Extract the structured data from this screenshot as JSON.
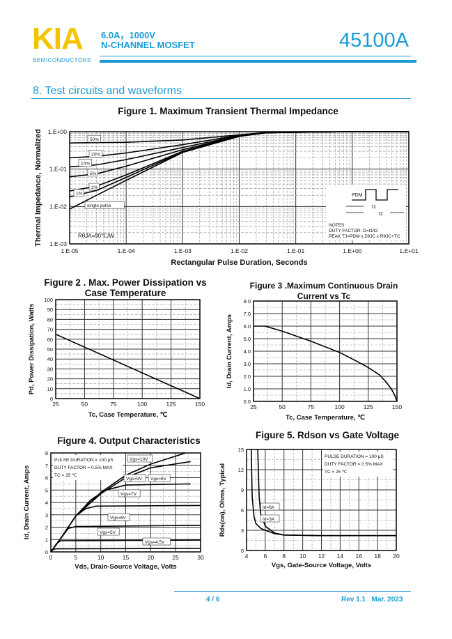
{
  "header": {
    "logo": "KIA",
    "logo_sub": "SEMICONDUCTORS",
    "spec_line1": "6.0A，1000V",
    "spec_line2": "N-CHANNEL MOSFET",
    "part_number": "45100A",
    "accent": "#1a9bd7",
    "logo_color": "#f5c400"
  },
  "section": {
    "title": "8. Test circuits and waveforms"
  },
  "footer": {
    "page": "4 / 6",
    "revision": "Rev 1.1   Mar. 2023"
  },
  "chart_data": [
    {
      "id": "fig1",
      "type": "line",
      "title": "Figure 1. Maximum Transient Thermal Impedance",
      "xlabel": "Rectangular Pulse Duration, Seconds",
      "ylabel": "Thermal Impedance, Normalized",
      "xscale": "log",
      "yscale": "log",
      "xlim": [
        1e-05,
        10
      ],
      "ylim": [
        0.001,
        1
      ],
      "xticks": [
        "1.E-05",
        "1.E-04",
        "1.E-03",
        "1.E-02",
        "1.E-01",
        "1.E+00",
        "1.E+01"
      ],
      "yticks": [
        "1.E-03",
        "1.E-02",
        "1.E-01",
        "1.E+00"
      ],
      "grid": true,
      "annotations": [
        "RθJA=90℃/W",
        "NOTES:",
        "DUTY FACTOR: D=t1/t2",
        "PEAK TJ=PDM x ZθJC x RθJC+TC",
        "PDM",
        "t1",
        "t2"
      ],
      "series": [
        {
          "name": "50%",
          "points": [
            [
              1e-05,
              0.5
            ],
            [
              0.0001,
              0.52
            ],
            [
              0.001,
              0.6
            ],
            [
              0.01,
              0.82
            ],
            [
              0.03,
              0.95
            ],
            [
              1,
              1
            ],
            [
              10,
              1
            ]
          ]
        },
        {
          "name": "20%",
          "points": [
            [
              1e-05,
              0.2
            ],
            [
              3e-05,
              0.22
            ],
            [
              0.0001,
              0.27
            ],
            [
              0.001,
              0.45
            ],
            [
              0.01,
              0.8
            ],
            [
              0.03,
              0.95
            ],
            [
              1,
              1
            ],
            [
              10,
              1
            ]
          ]
        },
        {
          "name": "10%",
          "points": [
            [
              1e-05,
              0.115
            ],
            [
              3e-05,
              0.13
            ],
            [
              0.0001,
              0.18
            ],
            [
              0.001,
              0.38
            ],
            [
              0.01,
              0.78
            ],
            [
              0.03,
              0.95
            ],
            [
              1,
              1
            ],
            [
              10,
              1
            ]
          ]
        },
        {
          "name": "5%",
          "points": [
            [
              1e-05,
              0.062
            ],
            [
              3e-05,
              0.075
            ],
            [
              0.0001,
              0.12
            ],
            [
              0.001,
              0.33
            ],
            [
              0.01,
              0.77
            ],
            [
              0.03,
              0.94
            ],
            [
              1,
              1
            ],
            [
              10,
              1
            ]
          ]
        },
        {
          "name": "2%",
          "points": [
            [
              1e-05,
              0.026
            ],
            [
              3e-05,
              0.035
            ],
            [
              0.0001,
              0.07
            ],
            [
              0.001,
              0.3
            ],
            [
              0.01,
              0.76
            ],
            [
              0.03,
              0.94
            ],
            [
              1,
              1
            ],
            [
              10,
              1
            ]
          ]
        },
        {
          "name": "1%",
          "points": [
            [
              1e-05,
              0.018
            ],
            [
              3e-05,
              0.027
            ],
            [
              0.0001,
              0.06
            ],
            [
              0.001,
              0.29
            ],
            [
              0.01,
              0.75
            ],
            [
              0.03,
              0.94
            ],
            [
              1,
              1
            ],
            [
              10,
              1
            ]
          ]
        },
        {
          "name": "single pulse",
          "points": [
            [
              1e-05,
              0.0085
            ],
            [
              3e-05,
              0.02
            ],
            [
              0.0001,
              0.05
            ],
            [
              0.001,
              0.28
            ],
            [
              0.01,
              0.75
            ],
            [
              0.03,
              0.93
            ],
            [
              0.1,
              0.99
            ],
            [
              1,
              1
            ],
            [
              10,
              1
            ]
          ]
        }
      ]
    },
    {
      "id": "fig2",
      "type": "line",
      "title": "Figure 2 . Max. Power Dissipation vs Case Temperature",
      "xlabel": "Tc, Case Temperature, ℃",
      "ylabel": "Pd, Power Dissipation, Watts",
      "xlim": [
        25,
        150
      ],
      "ylim": [
        0,
        100
      ],
      "xticks": [
        "25",
        "50",
        "75",
        "100",
        "125",
        "150"
      ],
      "yticks": [
        "0",
        "10",
        "20",
        "30",
        "40",
        "50",
        "60",
        "70",
        "80",
        "90",
        "100"
      ],
      "grid": true,
      "series": [
        {
          "points": [
            [
              25,
              65
            ],
            [
              150,
              0
            ]
          ]
        }
      ]
    },
    {
      "id": "fig3",
      "type": "line",
      "title": "Figure 3 .Maximum Continuous Drain Current  vs Tc",
      "xlabel": "Tc, Case Temperature, ℃",
      "ylabel": "Id, Drain Current, Amps",
      "xlim": [
        25,
        150
      ],
      "ylim": [
        0,
        8
      ],
      "xticks": [
        "25",
        "50",
        "75",
        "100",
        "125",
        "150"
      ],
      "yticks": [
        "0.0",
        "1.0",
        "2.0",
        "3.0",
        "4.0",
        "5.0",
        "6.0",
        "7.0",
        "8.0"
      ],
      "grid": true,
      "series": [
        {
          "points": [
            [
              25,
              6
            ],
            [
              35,
              6
            ],
            [
              50,
              5.6
            ],
            [
              75,
              4.8
            ],
            [
              100,
              3.9
            ],
            [
              115,
              3.2
            ],
            [
              125,
              2.7
            ],
            [
              135,
              2.1
            ],
            [
              140,
              1.6
            ],
            [
              145,
              1.0
            ],
            [
              148,
              0.5
            ],
            [
              150,
              0
            ]
          ]
        }
      ]
    },
    {
      "id": "fig4",
      "type": "line",
      "title": "Figure 4. Output Characteristics",
      "xlabel": "Vds, Drain-Source Voltage, Volts",
      "ylabel": "Id, Drain Current, Amps",
      "xlim": [
        0,
        30
      ],
      "ylim": [
        0,
        8
      ],
      "xticks": [
        "0",
        "5",
        "10",
        "15",
        "20",
        "25",
        "30"
      ],
      "yticks": [
        "0",
        "1",
        "2",
        "3",
        "4",
        "5",
        "6",
        "7",
        "8"
      ],
      "grid": true,
      "annotations": [
        "PULSE DURATION = 100 μS",
        "DUTY FACTOR = 0.5% MAX",
        "TC = 25 ℃"
      ],
      "series": [
        {
          "name": "Vgs=10V",
          "points": [
            [
              0,
              0
            ],
            [
              2,
              1.1
            ],
            [
              5,
              2.9
            ],
            [
              10,
              4.8
            ],
            [
              15,
              6.2
            ],
            [
              20,
              7.1
            ],
            [
              27,
              8
            ]
          ]
        },
        {
          "name": "Vgs=9V",
          "points": [
            [
              0,
              0
            ],
            [
              2,
              1.1
            ],
            [
              5,
              2.9
            ],
            [
              10,
              4.7
            ],
            [
              15,
              6.0
            ],
            [
              20,
              6.8
            ],
            [
              28,
              7.3
            ]
          ]
        },
        {
          "name": "Vgs=8V",
          "points": [
            [
              0,
              0
            ],
            [
              2,
              1.1
            ],
            [
              5,
              2.9
            ],
            [
              8,
              4.2
            ],
            [
              11,
              5.0
            ],
            [
              15,
              5.4
            ],
            [
              28,
              5.5
            ]
          ]
        },
        {
          "name": "Vgs=7V",
          "points": [
            [
              0,
              0
            ],
            [
              2,
              1.1
            ],
            [
              5,
              2.9
            ],
            [
              7,
              3.5
            ],
            [
              9,
              3.7
            ],
            [
              30,
              3.75
            ]
          ]
        },
        {
          "name": "Vgs=6V",
          "points": [
            [
              0,
              0
            ],
            [
              2,
              1.1
            ],
            [
              3.5,
              1.9
            ],
            [
              5,
              2.05
            ],
            [
              30,
              2.15
            ]
          ]
        },
        {
          "name": "Vgs=5V",
          "points": [
            [
              0,
              0
            ],
            [
              1.2,
              0.7
            ],
            [
              2,
              0.9
            ],
            [
              30,
              0.95
            ]
          ]
        },
        {
          "name": "Vgs=4.5V",
          "points": [
            [
              0,
              0
            ],
            [
              0.5,
              0.2
            ],
            [
              1,
              0.25
            ],
            [
              30,
              0.28
            ]
          ]
        }
      ]
    },
    {
      "id": "fig5",
      "type": "line",
      "title": "Figure 5.  Rdson vs Gate Voltage",
      "xlabel": "Vgs, Gate-Source Voltage, Volts",
      "ylabel": "Rds(on), Ohms, Typical",
      "xlim": [
        4,
        20
      ],
      "ylim": [
        0,
        15
      ],
      "xticks": [
        "4",
        "6",
        "8",
        "10",
        "12",
        "14",
        "16",
        "18",
        "20"
      ],
      "yticks": [
        "0",
        "3",
        "6",
        "9",
        "12",
        "15"
      ],
      "grid": true,
      "annotations": [
        "PULSE DURATION = 100 μS",
        "DUTY FACTOR = 0.5% MAX",
        "TC = 25 ℃"
      ],
      "series": [
        {
          "name": "Id=6A",
          "points": [
            [
              4.5,
              15
            ],
            [
              4.6,
              8
            ],
            [
              4.8,
              5
            ],
            [
              5,
              4
            ],
            [
              5.5,
              3.3
            ],
            [
              6,
              3
            ],
            [
              7,
              2.5
            ],
            [
              8,
              2.3
            ],
            [
              12,
              2.2
            ],
            [
              20,
              2.2
            ]
          ]
        },
        {
          "name": "Id=3A",
          "points": [
            [
              5.2,
              15
            ],
            [
              5.35,
              8
            ],
            [
              5.5,
              5.5
            ],
            [
              6,
              3.6
            ],
            [
              7,
              2.6
            ],
            [
              8,
              2.3
            ],
            [
              12,
              2.2
            ],
            [
              20,
              2.2
            ]
          ]
        }
      ]
    }
  ]
}
